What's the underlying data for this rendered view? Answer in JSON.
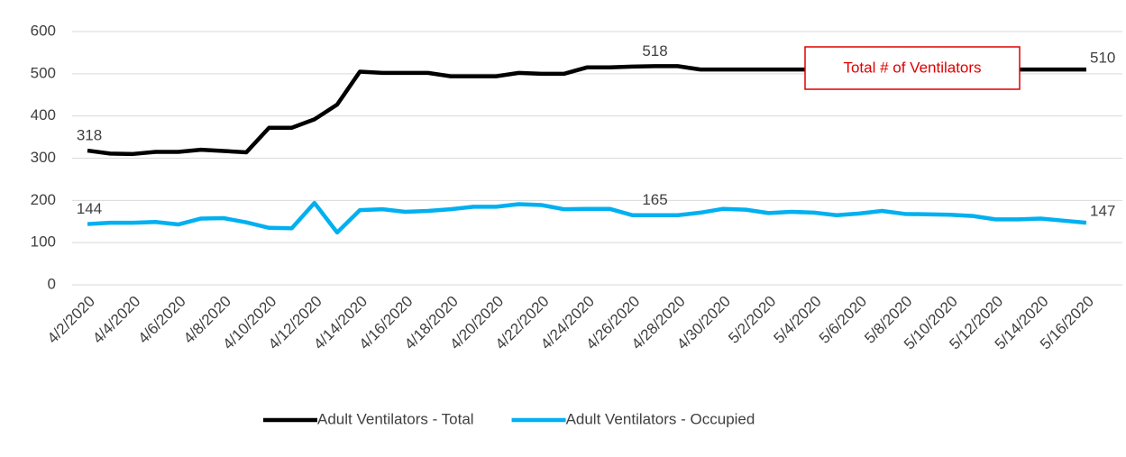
{
  "chart_data": {
    "type": "line",
    "categories": [
      "4/2/2020",
      null,
      "4/4/2020",
      null,
      "4/6/2020",
      null,
      "4/8/2020",
      null,
      "4/10/2020",
      null,
      "4/12/2020",
      null,
      "4/14/2020",
      null,
      "4/16/2020",
      null,
      "4/18/2020",
      null,
      "4/20/2020",
      null,
      "4/22/2020",
      null,
      "4/24/2020",
      null,
      "4/26/2020",
      null,
      "4/28/2020",
      null,
      "4/30/2020",
      null,
      "5/2/2020",
      null,
      "5/4/2020",
      null,
      "5/6/2020",
      null,
      "5/8/2020",
      null,
      "5/10/2020",
      null,
      "5/12/2020",
      null,
      "5/14/2020",
      null,
      "5/16/2020"
    ],
    "series": [
      {
        "name": "Adult Ventilators - Total",
        "color": "#000000",
        "values": [
          318,
          311,
          310,
          315,
          315,
          320,
          317,
          314,
          372,
          372,
          392,
          427,
          505,
          502,
          502,
          502,
          494,
          494,
          494,
          502,
          500,
          500,
          515,
          515,
          517,
          518,
          518,
          510,
          510,
          510,
          510,
          510,
          510,
          510,
          510,
          510,
          510,
          510,
          510,
          510,
          510,
          510,
          510,
          510,
          510
        ],
        "value_labels": [
          "318",
          null,
          null,
          null,
          null,
          null,
          null,
          null,
          null,
          null,
          null,
          null,
          null,
          null,
          null,
          null,
          null,
          null,
          null,
          null,
          null,
          null,
          null,
          null,
          null,
          "518",
          null,
          null,
          null,
          null,
          null,
          null,
          null,
          null,
          null,
          null,
          null,
          null,
          null,
          null,
          null,
          null,
          null,
          null,
          "510"
        ]
      },
      {
        "name": "Adult Ventilators - Occupied",
        "color": "#00b0f0",
        "values": [
          144,
          147,
          147,
          149,
          143,
          157,
          158,
          148,
          135,
          134,
          194,
          124,
          177,
          179,
          173,
          175,
          179,
          185,
          185,
          191,
          189,
          179,
          180,
          180,
          165,
          165,
          165,
          171,
          180,
          178,
          170,
          173,
          171,
          165,
          169,
          175,
          168,
          167,
          166,
          163,
          155,
          155,
          157,
          152,
          147
        ],
        "value_labels": [
          "144",
          null,
          null,
          null,
          null,
          null,
          null,
          null,
          null,
          null,
          null,
          null,
          null,
          null,
          null,
          null,
          null,
          null,
          null,
          null,
          null,
          null,
          null,
          null,
          null,
          "165",
          null,
          null,
          null,
          null,
          null,
          null,
          null,
          null,
          null,
          null,
          null,
          null,
          null,
          null,
          null,
          null,
          null,
          null,
          "147"
        ]
      }
    ],
    "ylim": [
      0,
      600
    ],
    "yticks": [
      0,
      100,
      200,
      300,
      400,
      500,
      600
    ],
    "grid": true,
    "annotations": [
      "Total # of Ventilators"
    ],
    "legend": "bottom"
  }
}
